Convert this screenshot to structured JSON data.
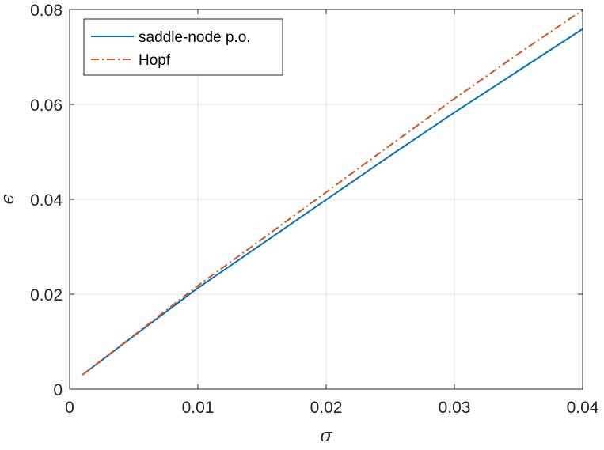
{
  "chart_data": {
    "type": "line",
    "title": "",
    "xlabel": "σ",
    "ylabel": "ϵ",
    "xlim": [
      0,
      0.04
    ],
    "ylim": [
      0,
      0.08
    ],
    "xticks": [
      0,
      0.01,
      0.02,
      0.03,
      0.04
    ],
    "yticks": [
      0,
      0.02,
      0.04,
      0.06,
      0.08
    ],
    "xtick_labels": [
      "0",
      "0.01",
      "0.02",
      "0.03",
      "0.04"
    ],
    "ytick_labels": [
      "0",
      "0.02",
      "0.04",
      "0.06",
      "0.08"
    ],
    "grid": true,
    "legend_position": "top-left",
    "series": [
      {
        "name": "saddle-node p.o.",
        "color": "#0072BD",
        "style": "solid",
        "x": [
          0.001,
          0.005,
          0.01,
          0.015,
          0.02,
          0.025,
          0.03,
          0.035,
          0.04
        ],
        "y": [
          0.003,
          0.0112,
          0.0213,
          0.0306,
          0.0399,
          0.0492,
          0.0583,
          0.0671,
          0.0759
        ]
      },
      {
        "name": "Hopf",
        "color": "#D95319",
        "style": "dashdot",
        "x": [
          0.001,
          0.005,
          0.01,
          0.015,
          0.02,
          0.025,
          0.03,
          0.035,
          0.04
        ],
        "y": [
          0.003,
          0.0113,
          0.0218,
          0.0316,
          0.0415,
          0.0514,
          0.0612,
          0.0707,
          0.0799
        ]
      }
    ]
  }
}
